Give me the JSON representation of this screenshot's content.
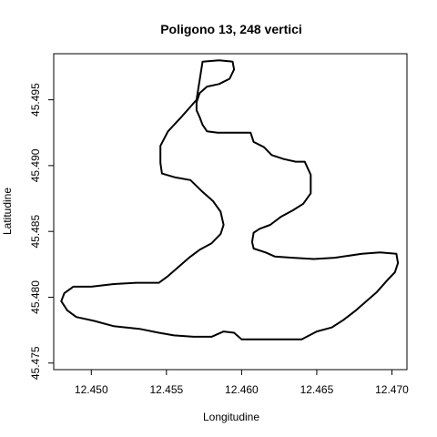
{
  "chart_data": {
    "type": "line",
    "title": "Poligono 13, 248 vertici",
    "xlabel": "Longitudine",
    "ylabel": "Latitudine",
    "xlim": [
      12.4475,
      12.471
    ],
    "ylim": [
      45.4745,
      45.4985
    ],
    "x_ticks": [
      12.45,
      12.455,
      12.46,
      12.465,
      12.47
    ],
    "x_tick_labels": [
      "12.450",
      "12.455",
      "12.460",
      "12.465",
      "12.470"
    ],
    "y_ticks": [
      45.475,
      45.48,
      45.485,
      45.49,
      45.495
    ],
    "y_tick_labels": [
      "45.475",
      "45.480",
      "45.485",
      "45.490",
      "45.495"
    ],
    "grid": false,
    "series": [
      {
        "color": "#000000",
        "points": [
          [
            12.4574,
            45.4979
          ],
          [
            12.4585,
            45.498
          ],
          [
            12.4594,
            45.4979
          ],
          [
            12.4595,
            45.4973
          ],
          [
            12.4592,
            45.4966
          ],
          [
            12.4585,
            45.4962
          ],
          [
            12.4577,
            45.496
          ],
          [
            12.4572,
            45.4955
          ],
          [
            12.457,
            45.4948
          ],
          [
            12.457,
            45.4942
          ],
          [
            12.4572,
            45.4937
          ],
          [
            12.4574,
            45.4931
          ],
          [
            12.4577,
            45.4926
          ],
          [
            12.4584,
            45.4925
          ],
          [
            12.4592,
            45.4925
          ],
          [
            12.46,
            45.4925
          ],
          [
            12.4606,
            45.4925
          ],
          [
            12.4608,
            45.4918
          ],
          [
            12.4615,
            45.4914
          ],
          [
            12.462,
            45.4908
          ],
          [
            12.4628,
            45.4905
          ],
          [
            12.4636,
            45.4903
          ],
          [
            12.4642,
            45.4903
          ],
          [
            12.4646,
            45.4893
          ],
          [
            12.4646,
            45.4879
          ],
          [
            12.4641,
            45.4871
          ],
          [
            12.4634,
            45.4866
          ],
          [
            12.4626,
            45.4861
          ],
          [
            12.4619,
            45.4855
          ],
          [
            12.4612,
            45.4852
          ],
          [
            12.4608,
            45.4849
          ],
          [
            12.4607,
            45.4842
          ],
          [
            12.4608,
            45.4837
          ],
          [
            12.4616,
            45.4834
          ],
          [
            12.4622,
            45.4831
          ],
          [
            12.4634,
            45.483
          ],
          [
            12.4648,
            45.4829
          ],
          [
            12.4662,
            45.483
          ],
          [
            12.468,
            45.4833
          ],
          [
            12.4692,
            45.4834
          ],
          [
            12.4703,
            45.4833
          ],
          [
            12.4704,
            45.4826
          ],
          [
            12.4702,
            45.4819
          ],
          [
            12.4697,
            45.4813
          ],
          [
            12.469,
            45.4804
          ],
          [
            12.4682,
            45.4796
          ],
          [
            12.4676,
            45.479
          ],
          [
            12.4668,
            45.4783
          ],
          [
            12.466,
            45.4777
          ],
          [
            12.465,
            45.4774
          ],
          [
            12.464,
            45.4768
          ],
          [
            12.4625,
            45.4768
          ],
          [
            12.4612,
            45.4768
          ],
          [
            12.46,
            45.4768
          ],
          [
            12.4595,
            45.4773
          ],
          [
            12.4588,
            45.4774
          ],
          [
            12.458,
            45.477
          ],
          [
            12.4568,
            45.477
          ],
          [
            12.4555,
            45.4771
          ],
          [
            12.4545,
            45.4773
          ],
          [
            12.4532,
            45.4776
          ],
          [
            12.4515,
            45.4778
          ],
          [
            12.4502,
            45.4782
          ],
          [
            12.449,
            45.4785
          ],
          [
            12.4484,
            45.479
          ],
          [
            12.448,
            45.4797
          ],
          [
            12.4482,
            45.4803
          ],
          [
            12.4488,
            45.4808
          ],
          [
            12.45,
            45.4808
          ],
          [
            12.4515,
            45.481
          ],
          [
            12.453,
            45.4811
          ],
          [
            12.4545,
            45.4811
          ],
          [
            12.4551,
            45.4816
          ],
          [
            12.4558,
            45.4823
          ],
          [
            12.4565,
            45.483
          ],
          [
            12.4572,
            45.4836
          ],
          [
            12.458,
            45.4841
          ],
          [
            12.4586,
            45.4848
          ],
          [
            12.4588,
            45.4855
          ],
          [
            12.4586,
            45.4865
          ],
          [
            12.4581,
            45.4873
          ],
          [
            12.4574,
            45.488
          ],
          [
            12.4566,
            45.4889
          ],
          [
            12.4556,
            45.4891
          ],
          [
            12.4547,
            45.4894
          ],
          [
            12.4546,
            45.4902
          ],
          [
            12.4546,
            45.4915
          ],
          [
            12.4551,
            45.4926
          ],
          [
            12.456,
            45.4937
          ],
          [
            12.457,
            45.495
          ],
          [
            12.4574,
            45.4979
          ]
        ]
      }
    ]
  }
}
